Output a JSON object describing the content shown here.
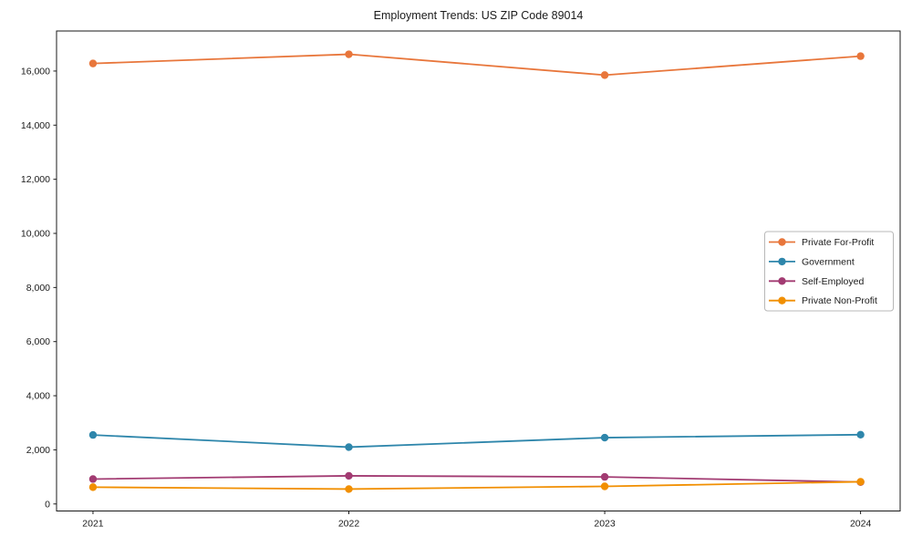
{
  "chart_data": {
    "type": "line",
    "title": "Employment Trends: US ZIP Code 89014",
    "xlabel": "",
    "ylabel": "",
    "x": [
      "2021",
      "2022",
      "2023",
      "2024"
    ],
    "series": [
      {
        "name": "Private For-Profit",
        "color": "#E8763B",
        "values": [
          16280,
          16620,
          15850,
          16550
        ]
      },
      {
        "name": "Government",
        "color": "#2E86AB",
        "values": [
          2550,
          2100,
          2450,
          2560
        ]
      },
      {
        "name": "Self-Employed",
        "color": "#A23B72",
        "values": [
          920,
          1040,
          1000,
          810
        ]
      },
      {
        "name": "Private Non-Profit",
        "color": "#F18F01",
        "values": [
          620,
          550,
          650,
          820
        ]
      }
    ],
    "yticks": [
      0,
      2000,
      4000,
      6000,
      8000,
      10000,
      12000,
      14000,
      16000
    ],
    "ytick_labels": [
      "0",
      "2,000",
      "4,000",
      "6,000",
      "8,000",
      "10,000",
      "12,000",
      "14,000",
      "16,000"
    ],
    "ylim": [
      -260,
      17480
    ],
    "grid": false,
    "marker": "circle",
    "legend_position": "center-right",
    "axis_color": "#1a1a1a",
    "legend_border_color": "#b8b8b8",
    "background_color": "#ffffff"
  }
}
